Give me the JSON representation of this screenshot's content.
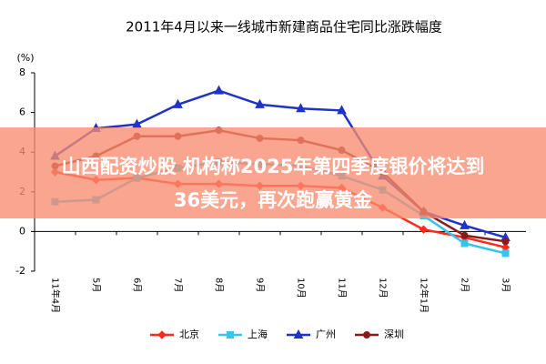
{
  "chart_data": {
    "type": "line",
    "title": "2011年4月以来一线城市新建商品住宅同比涨跌幅度",
    "y_label": "(%)",
    "categories": [
      "11年4月",
      "5月",
      "6月",
      "7月",
      "8月",
      "9月",
      "10月",
      "11月",
      "12月",
      "12年1月",
      "2月",
      "3月"
    ],
    "ylim": [
      -2,
      8
    ],
    "yticks": [
      -2,
      0,
      2,
      4,
      6,
      8
    ],
    "grid": false,
    "legend": "bottom",
    "series": [
      {
        "name": "北京",
        "color": "#ff2a1a",
        "marker": "diamond",
        "values": [
          3.0,
          2.6,
          2.7,
          2.4,
          2.4,
          2.3,
          2.3,
          2.2,
          1.2,
          0.1,
          -0.3,
          -0.8
        ]
      },
      {
        "name": "上海",
        "color": "#33c6ea",
        "marker": "square",
        "values": [
          1.5,
          1.6,
          2.7,
          3.2,
          3.5,
          3.4,
          3.3,
          2.8,
          2.1,
          0.8,
          -0.6,
          -1.1
        ]
      },
      {
        "name": "广州",
        "color": "#1f33c8",
        "marker": "triangle",
        "values": [
          3.8,
          5.2,
          5.4,
          6.4,
          7.1,
          6.4,
          6.2,
          6.1,
          2.8,
          1.0,
          0.3,
          -0.3
        ]
      },
      {
        "name": "深圳",
        "color": "#8b1a1a",
        "marker": "circle",
        "values": [
          3.3,
          3.8,
          4.8,
          4.8,
          5.1,
          4.7,
          4.6,
          4.1,
          3.0,
          1.0,
          -0.2,
          -0.5
        ]
      }
    ]
  },
  "banner": {
    "lines": [
      "山西配资炒股 机构称2025年第四季度银价将达到",
      "36美元，再次跑赢黄金"
    ]
  }
}
